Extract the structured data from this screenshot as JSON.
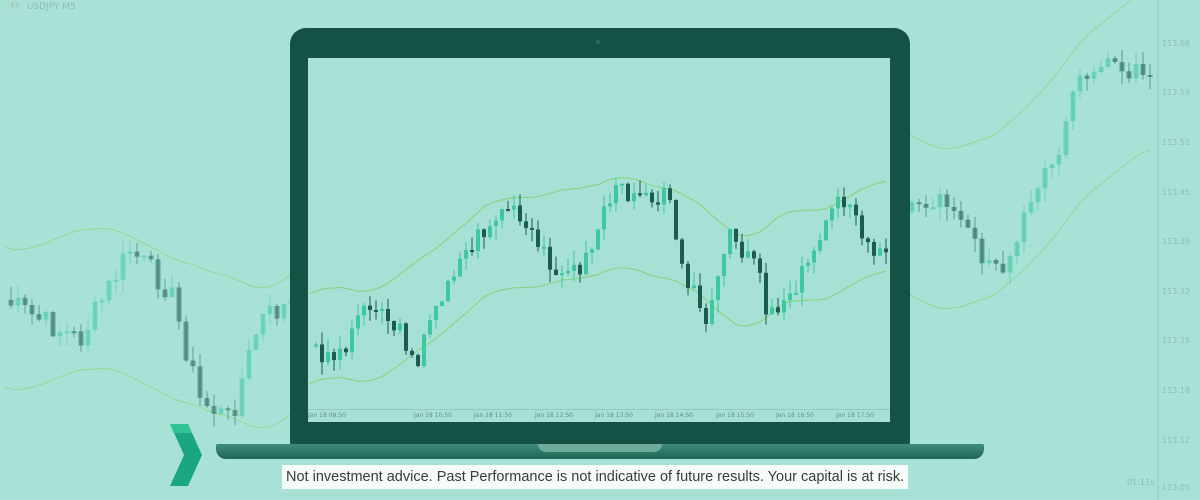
{
  "symbol": {
    "badge": "FX",
    "title": "USDJPY M5"
  },
  "price_axis": [
    "113.66",
    "113.59",
    "113.52",
    "113.45",
    "113.39",
    "113.32",
    "113.25",
    "113.18",
    "113.12",
    "113.05"
  ],
  "countdown": "01:11s",
  "screen_time_axis": [
    "Jan 18 09:50",
    "Jan 18 10:50",
    "Jan 18 11:50",
    "Jan 18 12:50",
    "Jan 18 13:50",
    "Jan 18 14:50",
    "Jan 18 15:50",
    "Jan 18 16:50",
    "Jan 18 17:50"
  ],
  "disclaimer": "Not investment advice. Past Performance is not indicative of future results. Your capital is at risk.",
  "colors": {
    "background": "#a8e2d6",
    "laptop": "#135245",
    "bull_candle": "#3fc7a4",
    "bear_candle": "#1b5c50",
    "bollinger_band": "#7fd36b",
    "logo": "#1aa77f"
  }
}
